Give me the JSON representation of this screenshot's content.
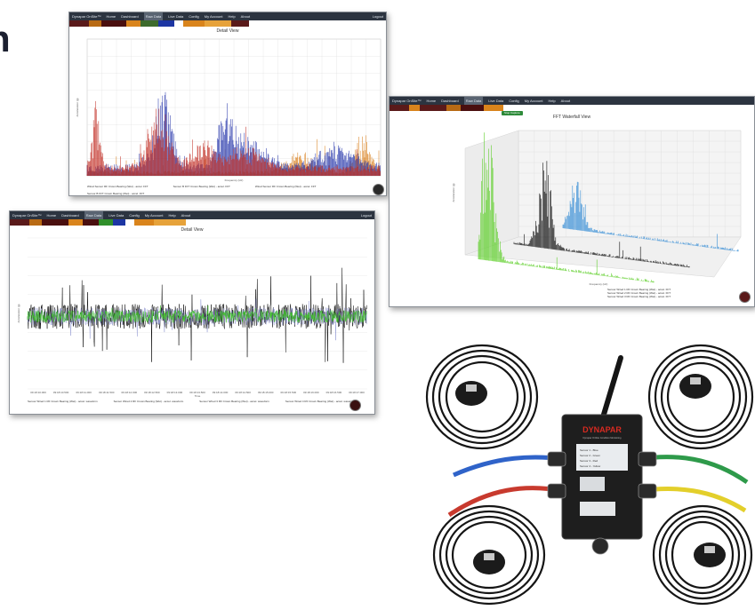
{
  "heading": "n",
  "nav": [
    "Dynapar OnSite™",
    "Home",
    "Dashboard",
    "Raw Data",
    "Live Data",
    "Config",
    "My Account",
    "Help",
    "About",
    "Logout"
  ],
  "detail_title": "Detail View",
  "waterfall_title": "FFT Waterfall View",
  "waterfall_button": "Stop Capture",
  "legend_fft": [
    "Wired Sensor RF Crown Bearing (Wet) - accel. FFT",
    "Sensor B FFT Crown Bearing (Wet) - accel. FFT",
    "Wired Sensor RF Crown Bearing (Wet) - accel. FFT",
    "Sensor B FFT Crown Bearing (Wet) - accel. FFT"
  ],
  "legend_time": [
    "Sensor Wired 1 RF Crown Bearing (Wet) - accel. waveform",
    "Sensor Wired 2 RF Crown Bearing (Wet) - accel. waveform",
    "Sensor Wired 3 RF Crown Bearing (Wet) - accel. waveform",
    "Sensor Wired 4 RF Crown Bearing (Wet) - accel. waveform"
  ],
  "legend_waterfall": [
    "Sensor Wired 1 RF Crown Bearing (Wet) - accel. FFT",
    "Sensor Wired 2 RF Crown Bearing (Wet) - accel. FFT",
    "Sensor Wired 3 RF Crown Bearing (Wet) - accel. FFT"
  ],
  "time_xlabel": "Time",
  "freq_xlabel": "Frequency (Hz)",
  "ylabel": "Acceleration (g)",
  "time_ticks": [
    "09:18:10.000",
    "09:18:10.500",
    "09:18:11.000",
    "09:18:11.500",
    "09:18:12.000",
    "09:18:12.500",
    "09:18:13.000",
    "09:18:13.500",
    "09:18:14.000",
    "09:18:14.500",
    "09:18:15.000",
    "09:18:15.500",
    "09:18:16.000",
    "09:18:16.500",
    "09:18:17.000"
  ],
  "device": {
    "brand": "DYNAPAR",
    "tagline": "Dynapar OnSite Condition Monitoring",
    "label_lines": [
      "Sensor 1 - Blue",
      "Sensor 2 - Green",
      "Sensor 3 - Red",
      "Sensor 4 - Yellow"
    ]
  },
  "colors": {
    "fft_red": "#c0281e",
    "fft_blue": "#1f2fa8",
    "fft_orange": "#d87a12",
    "time_black": "#111111",
    "time_green": "#3fc42b",
    "wf_green": "#5fcf2b",
    "wf_black": "#111111",
    "wf_blue": "#3a8fd6"
  }
}
